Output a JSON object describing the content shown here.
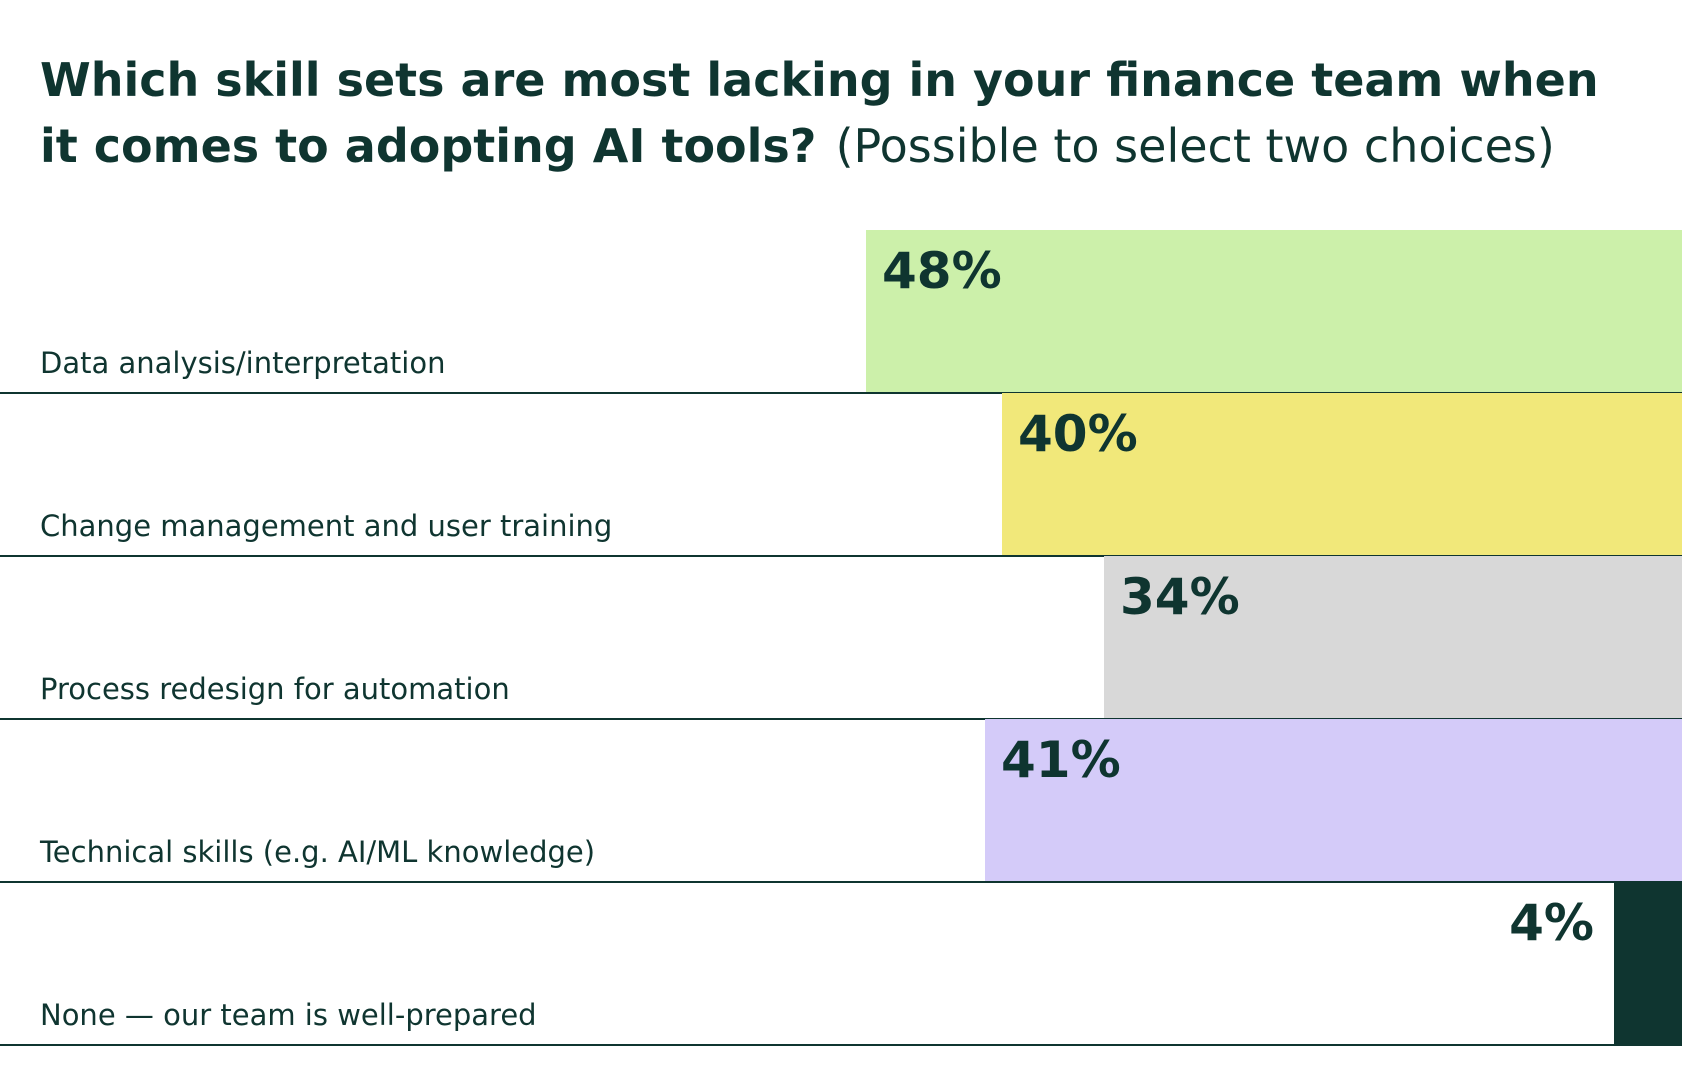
{
  "chart_data": {
    "type": "bar",
    "orientation": "horizontal",
    "title": "Which skill sets are most lacking in your finance team when it comes to adopting AI tools?",
    "subtitle": "(Possible to select two choices)",
    "categories": [
      "Data analysis/interpretation",
      "Change management and user training",
      "Process redesign for automation",
      "Technical skills (e.g. AI/ML knowledge)",
      "None — our team is well-prepared"
    ],
    "values": [
      48,
      40,
      34,
      41,
      4
    ],
    "value_labels": [
      "48%",
      "40%",
      "34%",
      "41%",
      "4%"
    ],
    "colors": [
      "#ccf0aa",
      "#f1e87a",
      "#d8d8d8",
      "#d4cbf9",
      "#0f3530"
    ]
  }
}
